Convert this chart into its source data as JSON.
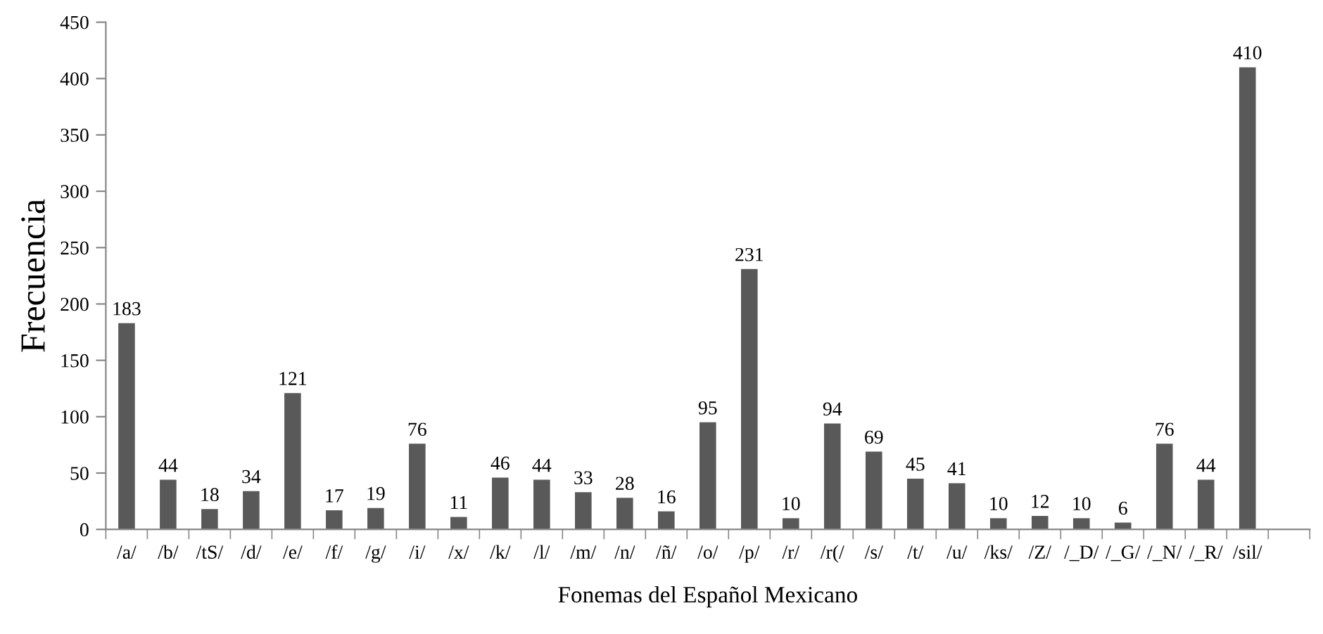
{
  "chart_data": {
    "type": "bar",
    "xlabel": "Fonemas del Español Mexicano",
    "ylabel": "Frecuencia",
    "categories": [
      "/a/",
      "/b/",
      "/tS/",
      "/d/",
      "/e/",
      "/f/",
      "/g/",
      "/i/",
      "/x/",
      "/k/",
      "/l/",
      "/m/",
      "/n/",
      "/ñ/",
      "/o/",
      "/p/",
      "/r/",
      "/r(/",
      "/s/",
      "/t/",
      "/u/",
      "/ks/",
      "/Z/",
      "/_D/",
      "/_G/",
      "/_N/",
      "/_R/",
      "/sil/",
      null
    ],
    "values": [
      183,
      44,
      18,
      34,
      121,
      17,
      19,
      76,
      11,
      46,
      44,
      33,
      28,
      16,
      95,
      231,
      10,
      94,
      69,
      45,
      41,
      10,
      12,
      10,
      6,
      76,
      44,
      410,
      null
    ],
    "color": "#595959",
    "ylim": [
      0,
      450
    ],
    "yticks": [
      0,
      50,
      100,
      150,
      200,
      250,
      300,
      350,
      400,
      450
    ],
    "grid": false,
    "data_labels": true
  }
}
